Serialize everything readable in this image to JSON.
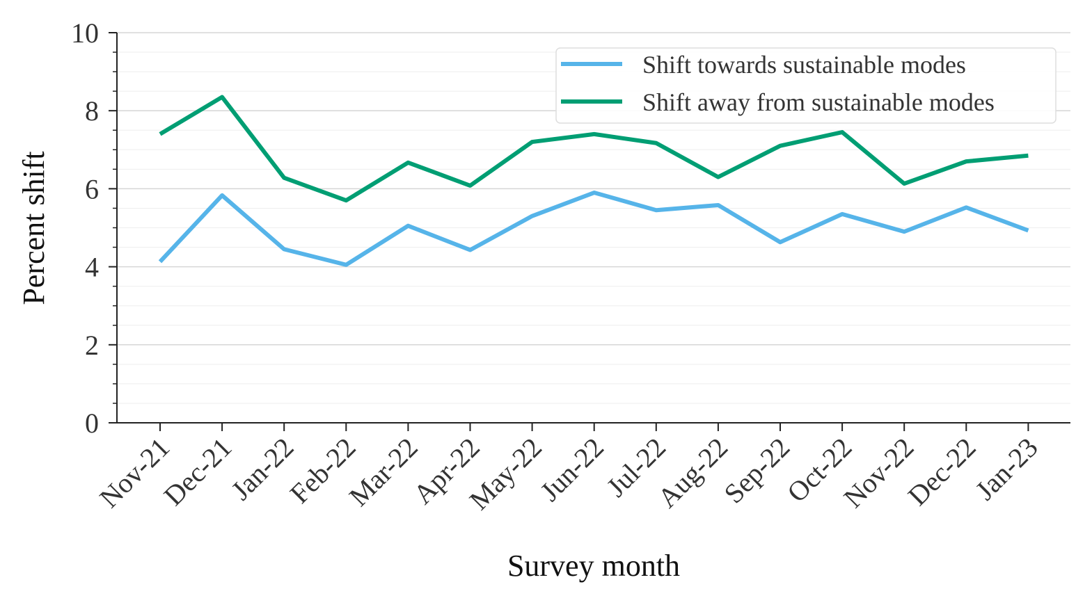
{
  "chart_data": {
    "type": "line",
    "title": "",
    "xlabel": "Survey month",
    "ylabel": "Percent shift",
    "ylim": [
      0,
      10
    ],
    "yticks": [
      "0",
      "2",
      "4",
      "6",
      "8",
      "10"
    ],
    "categories": [
      "Nov-21",
      "Dec-21",
      "Jan-22",
      "Feb-22",
      "Mar-22",
      "Apr-22",
      "May-22",
      "Jun-22",
      "Jul-22",
      "Aug-22",
      "Sep-22",
      "Oct-22",
      "Nov-22",
      "Dec-22",
      "Jan-23"
    ],
    "grid": "horizontal",
    "legend_position": "top-right",
    "series": [
      {
        "name": "Shift towards sustainable modes",
        "color": "#56b4e9",
        "values": [
          4.13,
          5.83,
          4.45,
          4.05,
          5.05,
          4.43,
          5.3,
          5.9,
          5.45,
          5.58,
          4.63,
          5.35,
          4.9,
          5.52,
          4.93
        ]
      },
      {
        "name": "Shift away from sustainable modes",
        "color": "#009e73",
        "values": [
          7.4,
          8.35,
          6.28,
          5.7,
          6.67,
          6.08,
          7.2,
          7.4,
          7.17,
          6.3,
          7.1,
          7.45,
          6.13,
          6.7,
          6.85
        ]
      }
    ]
  }
}
